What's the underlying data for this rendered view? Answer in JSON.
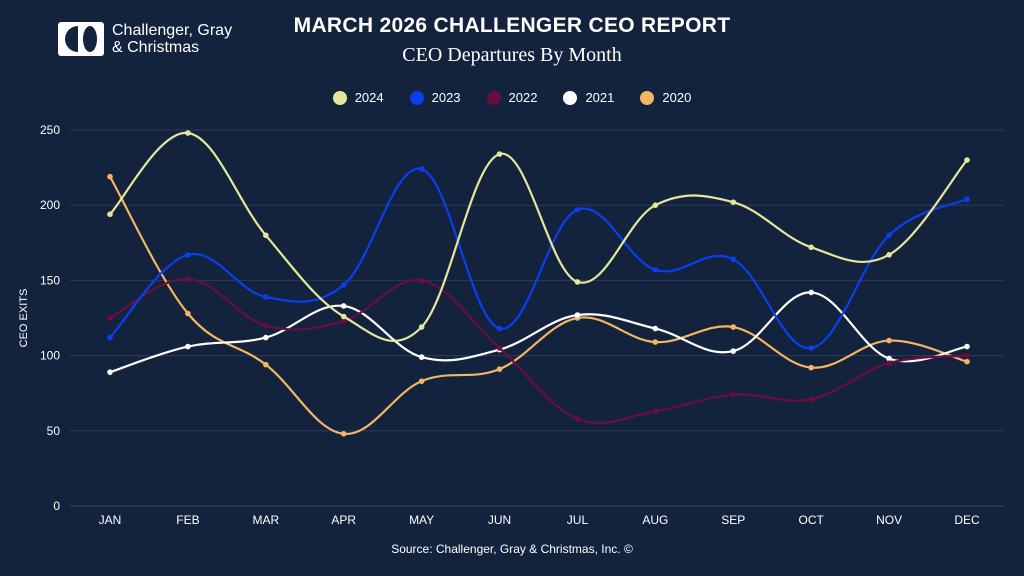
{
  "logo": {
    "line1": "Challenger, Gray",
    "line2": "& Christmas"
  },
  "title": "MARCH 2026 CHALLENGER CEO REPORT",
  "subtitle": "CEO Departures By Month",
  "source": "Source: Challenger, Gray & Christmas, Inc. ©",
  "chart_data": {
    "type": "line",
    "title": "MARCH 2026 CHALLENGER CEO REPORT",
    "subtitle": "CEO Departures By Month",
    "xlabel": "",
    "ylabel": "CEO EXITS",
    "ylim": [
      0,
      250
    ],
    "yticks": [
      "0",
      "50",
      "100",
      "150",
      "200",
      "250"
    ],
    "grid": true,
    "legend_position": "top",
    "categories": [
      "JAN",
      "FEB",
      "MAR",
      "APR",
      "MAY",
      "JUN",
      "JUL",
      "AUG",
      "SEP",
      "OCT",
      "NOV",
      "DEC"
    ],
    "series": [
      {
        "name": "2024",
        "color": "#e6e69a",
        "values": [
          194,
          248,
          180,
          126,
          119,
          234,
          149,
          200,
          202,
          172,
          167,
          230
        ]
      },
      {
        "name": "2023",
        "color": "#0a3ff0",
        "values": [
          112,
          167,
          139,
          147,
          224,
          118,
          197,
          157,
          164,
          105,
          180,
          204
        ]
      },
      {
        "name": "2022",
        "color": "#6b0d3d",
        "values": [
          125,
          151,
          120,
          123,
          150,
          105,
          58,
          63,
          74,
          71,
          95,
          100
        ]
      },
      {
        "name": "2021",
        "color": "#ffffff",
        "values": [
          89,
          106,
          112,
          133,
          99,
          104,
          127,
          118,
          103,
          142,
          98,
          106
        ]
      },
      {
        "name": "2020",
        "color": "#f4b663",
        "values": [
          219,
          128,
          94,
          48,
          83,
          91,
          125,
          109,
          119,
          92,
          110,
          96
        ]
      }
    ]
  }
}
